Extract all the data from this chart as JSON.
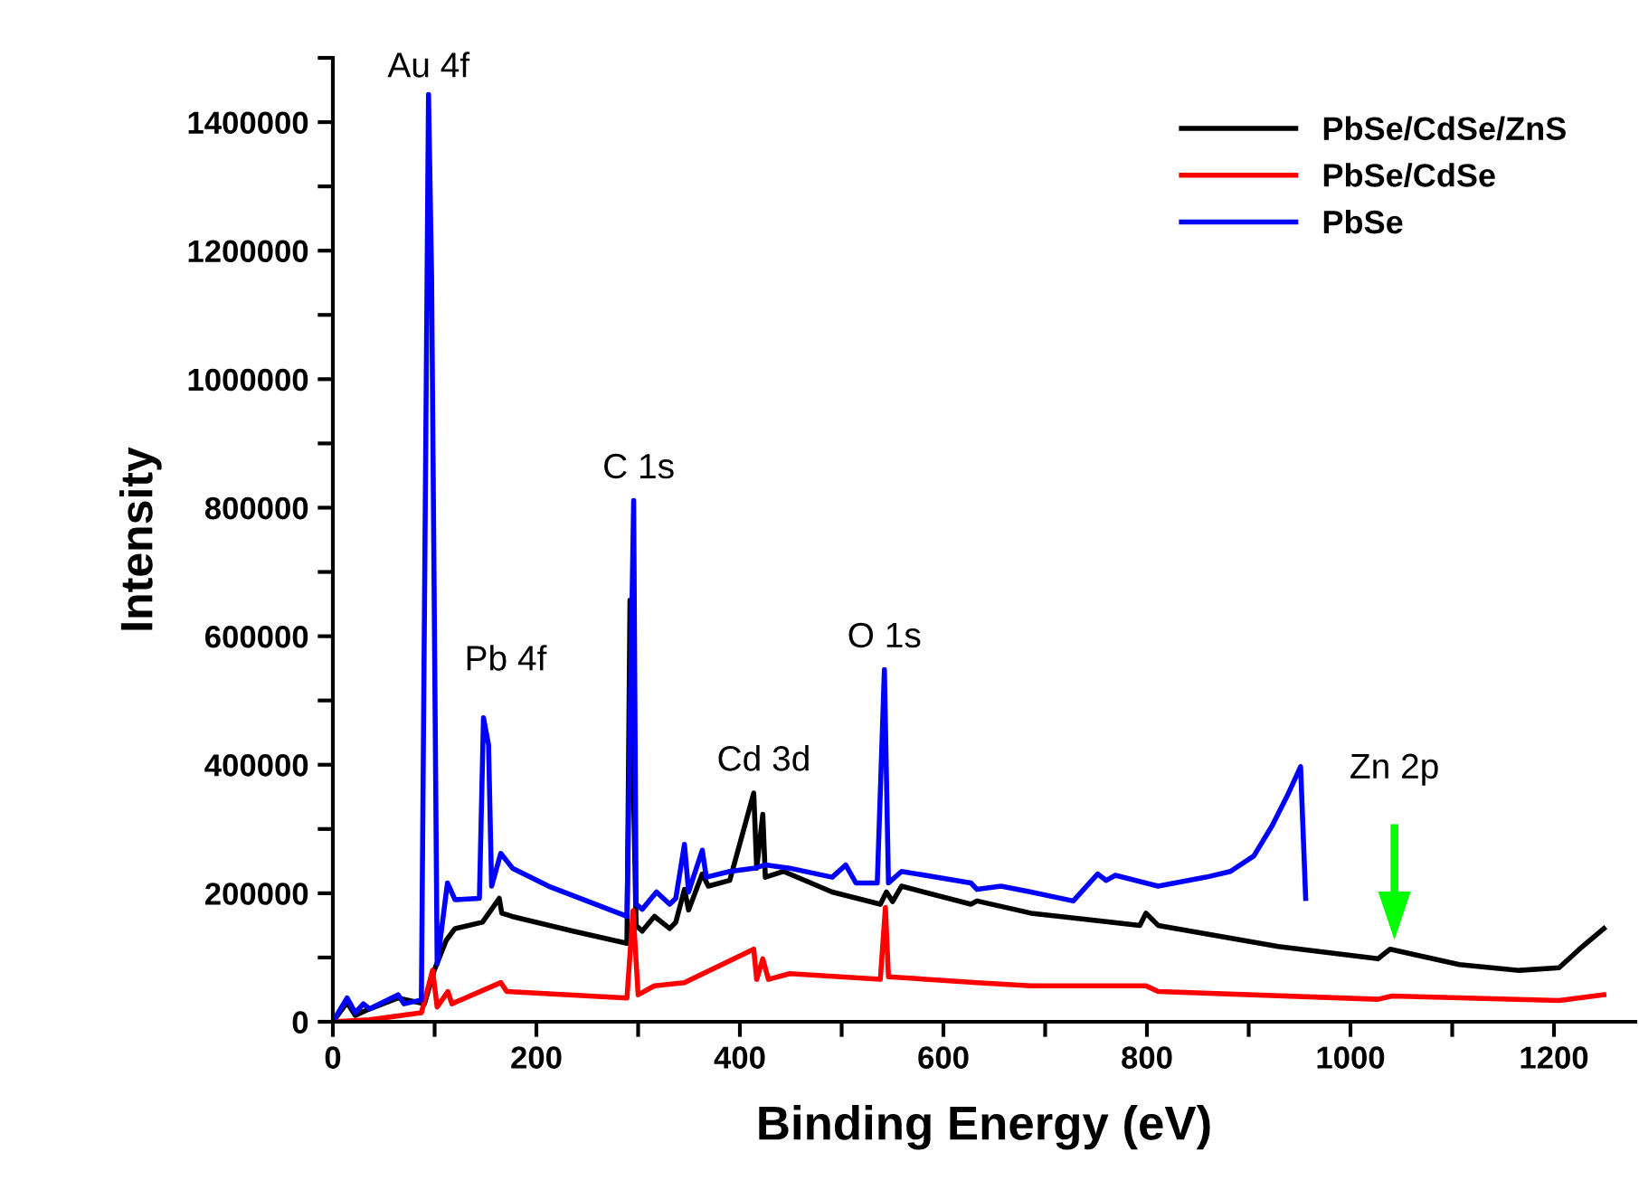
{
  "chart_data": {
    "type": "line",
    "xlabel": "Binding Energy (eV)",
    "ylabel": "Intensity",
    "xlim": [
      0,
      1280
    ],
    "ylim": [
      0,
      1500000
    ],
    "xticks": [
      0,
      {
        "value": 100,
        "label": null
      },
      200,
      {
        "value": 300,
        "label": null
      },
      400,
      {
        "value": 500,
        "label": null
      },
      600,
      {
        "value": 700,
        "label": null
      },
      800,
      {
        "value": 900,
        "label": null
      },
      1000,
      {
        "value": 1100,
        "label": null
      },
      1200
    ],
    "yticks": [
      0,
      {
        "value": 100000,
        "label": null
      },
      200000,
      {
        "value": 300000,
        "label": null
      },
      400000,
      {
        "value": 500000,
        "label": null
      },
      600000,
      {
        "value": 700000,
        "label": null
      },
      800000,
      {
        "value": 900000,
        "label": null
      },
      1000000,
      {
        "value": 1100000,
        "label": null
      },
      1200000,
      {
        "value": 1300000,
        "label": null
      },
      1400000,
      {
        "value": 1500000,
        "label": null
      }
    ],
    "grid": false,
    "legend": "top right",
    "marker": "none",
    "line_style": "solid",
    "series": [
      {
        "name": "PbSe/CdSe/ZnS",
        "color": "#000000",
        "x": [
          0,
          14,
          22,
          36,
          64,
          90,
          99.6,
          111.5,
          120,
          147,
          163.5,
          166,
          176,
          236,
          289,
          292,
          298,
          304,
          316,
          331,
          337,
          345.5,
          349.6,
          363,
          369,
          390,
          413.6,
          416.5,
          422.5,
          425,
          443,
          490.7,
          538,
          544,
          550,
          558.8,
          627,
          633,
          686,
          793,
          799,
          811,
          929,
          1027,
          1039,
          1059,
          1107,
          1166,
          1205,
          1225,
          1249
        ],
        "values": [
          0,
          30000,
          10000,
          20000,
          37000,
          28000,
          80000,
          127000,
          145000,
          155000,
          192000,
          169000,
          164000,
          141000,
          122000,
          656000,
          150000,
          141000,
          164000,
          145000,
          155000,
          206000,
          174000,
          230000,
          211000,
          220000,
          356000,
          239000,
          323000,
          225000,
          234000,
          202000,
          183000,
          202000,
          187000,
          211000,
          183000,
          188000,
          169000,
          150000,
          169000,
          150000,
          117000,
          98000,
          113000,
          106000,
          89000,
          80000,
          84000,
          113000,
          145000
        ]
      },
      {
        "name": "PbSe/CdSe",
        "color": "#ff0000",
        "x": [
          0,
          36,
          87,
          98,
          102.5,
          113,
          117,
          165,
          171,
          289,
          295,
          300,
          316,
          345.5,
          413.6,
          416.5,
          422.5,
          428,
          449,
          538,
          543,
          546,
          633,
          686,
          799,
          811,
          1027,
          1041,
          1205,
          1249
        ],
        "values": [
          0,
          3000,
          14000,
          80000,
          23000,
          47000,
          28000,
          61000,
          47000,
          37000,
          173000,
          42000,
          56000,
          61000,
          113000,
          66000,
          98000,
          66000,
          75000,
          66000,
          178000,
          70000,
          61000,
          56000,
          56000,
          47000,
          35000,
          40000,
          33000,
          42000
        ]
      },
      {
        "name": "PbSe",
        "color": "#0000ff",
        "x": [
          0,
          14,
          22,
          30,
          36,
          64,
          70,
          87,
          94,
          97,
          102.5,
          112.6,
          120,
          144,
          148,
          153,
          156,
          165,
          176.5,
          212,
          289,
          295.6,
          298,
          304,
          318,
          331,
          337,
          345.5,
          349.6,
          363,
          367,
          390,
          413.6,
          425,
          449,
          490.7,
          504,
          514,
          535,
          542,
          546,
          558.8,
          627,
          633,
          656.6,
          686,
          727.6,
          751.5,
          760,
          769,
          811,
          858,
          882,
          905,
          923,
          938,
          951,
          956
        ],
        "values": [
          0,
          37000,
          14000,
          28000,
          20000,
          42000,
          28000,
          34000,
          1443000,
          1162000,
          90000,
          216000,
          190000,
          192000,
          473000,
          431000,
          211000,
          262000,
          239000,
          211000,
          164000,
          811000,
          183000,
          175000,
          202000,
          183000,
          192000,
          276000,
          202000,
          267000,
          225000,
          234000,
          239000,
          244000,
          239000,
          225000,
          244000,
          216000,
          216000,
          548000,
          216000,
          234000,
          216000,
          206000,
          211000,
          202000,
          188000,
          230000,
          220000,
          228000,
          211000,
          225000,
          234000,
          258000,
          305000,
          352000,
          397000,
          192000
        ]
      }
    ],
    "annotations": [
      {
        "text": "Au 4f",
        "x": 94,
        "y": 1443000
      },
      {
        "text": "Pb 4f",
        "x": 150,
        "y": 473000
      },
      {
        "text": "C 1s",
        "x": 295.6,
        "y": 811000
      },
      {
        "text": "Cd 3d",
        "x": 413.6,
        "y": 356000
      },
      {
        "text": "O 1s",
        "x": 542,
        "y": 548000
      },
      "Zn 2p"
    ]
  }
}
